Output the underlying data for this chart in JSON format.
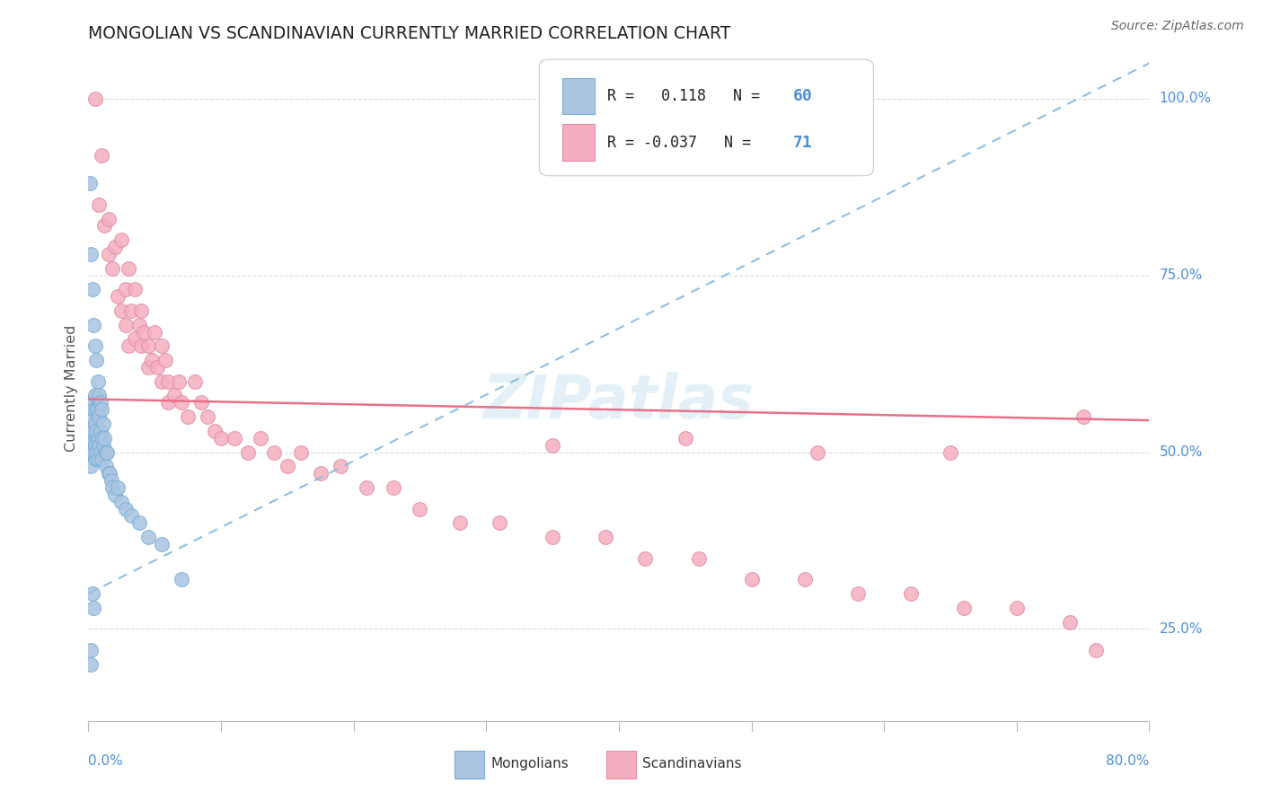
{
  "title": "MONGOLIAN VS SCANDINAVIAN CURRENTLY MARRIED CORRELATION CHART",
  "source": "Source: ZipAtlas.com",
  "ylabel": "Currently Married",
  "right_ytick_labels": [
    "100.0%",
    "75.0%",
    "50.0%",
    "25.0%"
  ],
  "right_ytick_positions": [
    1.0,
    0.75,
    0.5,
    0.25
  ],
  "mongolian_color": "#aac4e2",
  "scandinavian_color": "#f5aec0",
  "trend_mongolian_color": "#90bede",
  "trend_scandinavian_color": "#e8708a",
  "watermark_color": "#d8eaf5",
  "xlim": [
    0.0,
    0.8
  ],
  "ylim": [
    0.12,
    1.06
  ],
  "background_color": "#ffffff",
  "grid_color": "#d8d8d8",
  "mongolian_x": [
    0.001,
    0.001,
    0.001,
    0.002,
    0.002,
    0.002,
    0.002,
    0.002,
    0.003,
    0.003,
    0.003,
    0.004,
    0.004,
    0.004,
    0.004,
    0.005,
    0.005,
    0.005,
    0.005,
    0.005,
    0.006,
    0.006,
    0.006,
    0.006,
    0.007,
    0.007,
    0.007,
    0.007,
    0.008,
    0.008,
    0.008,
    0.009,
    0.009,
    0.009,
    0.01,
    0.01,
    0.01,
    0.011,
    0.011,
    0.012,
    0.013,
    0.013,
    0.014,
    0.015,
    0.016,
    0.017,
    0.018,
    0.02,
    0.022,
    0.025,
    0.028,
    0.032,
    0.038,
    0.045,
    0.055,
    0.07,
    0.003,
    0.004,
    0.002,
    0.002
  ],
  "mongolian_y": [
    0.88,
    0.52,
    0.5,
    0.78,
    0.55,
    0.52,
    0.51,
    0.48,
    0.73,
    0.57,
    0.5,
    0.68,
    0.56,
    0.53,
    0.5,
    0.65,
    0.58,
    0.54,
    0.51,
    0.49,
    0.63,
    0.56,
    0.53,
    0.5,
    0.6,
    0.56,
    0.52,
    0.49,
    0.58,
    0.55,
    0.51,
    0.57,
    0.53,
    0.5,
    0.56,
    0.52,
    0.49,
    0.54,
    0.51,
    0.52,
    0.5,
    0.48,
    0.5,
    0.47,
    0.47,
    0.46,
    0.45,
    0.44,
    0.45,
    0.43,
    0.42,
    0.41,
    0.4,
    0.38,
    0.37,
    0.32,
    0.3,
    0.28,
    0.22,
    0.2
  ],
  "scandinavian_x": [
    0.005,
    0.008,
    0.01,
    0.012,
    0.015,
    0.015,
    0.018,
    0.02,
    0.022,
    0.025,
    0.025,
    0.028,
    0.028,
    0.03,
    0.03,
    0.032,
    0.035,
    0.035,
    0.038,
    0.04,
    0.04,
    0.042,
    0.045,
    0.045,
    0.048,
    0.05,
    0.052,
    0.055,
    0.055,
    0.058,
    0.06,
    0.06,
    0.065,
    0.068,
    0.07,
    0.075,
    0.08,
    0.085,
    0.09,
    0.095,
    0.1,
    0.11,
    0.12,
    0.13,
    0.14,
    0.15,
    0.16,
    0.175,
    0.19,
    0.21,
    0.23,
    0.25,
    0.28,
    0.31,
    0.35,
    0.39,
    0.42,
    0.46,
    0.5,
    0.54,
    0.58,
    0.62,
    0.66,
    0.7,
    0.74,
    0.76,
    0.35,
    0.45,
    0.55,
    0.65,
    0.75
  ],
  "scandinavian_y": [
    1.0,
    0.85,
    0.92,
    0.82,
    0.83,
    0.78,
    0.76,
    0.79,
    0.72,
    0.8,
    0.7,
    0.73,
    0.68,
    0.76,
    0.65,
    0.7,
    0.73,
    0.66,
    0.68,
    0.7,
    0.65,
    0.67,
    0.65,
    0.62,
    0.63,
    0.67,
    0.62,
    0.65,
    0.6,
    0.63,
    0.6,
    0.57,
    0.58,
    0.6,
    0.57,
    0.55,
    0.6,
    0.57,
    0.55,
    0.53,
    0.52,
    0.52,
    0.5,
    0.52,
    0.5,
    0.48,
    0.5,
    0.47,
    0.48,
    0.45,
    0.45,
    0.42,
    0.4,
    0.4,
    0.38,
    0.38,
    0.35,
    0.35,
    0.32,
    0.32,
    0.3,
    0.3,
    0.28,
    0.28,
    0.26,
    0.22,
    0.51,
    0.52,
    0.5,
    0.5,
    0.55
  ],
  "trend_mongolian_x0": 0.0,
  "trend_mongolian_x1": 0.8,
  "trend_mongolian_y0": 0.3,
  "trend_mongolian_y1": 1.05,
  "trend_scandinavian_x0": 0.0,
  "trend_scandinavian_x1": 0.8,
  "trend_scandinavian_y0": 0.575,
  "trend_scandinavian_y1": 0.545
}
